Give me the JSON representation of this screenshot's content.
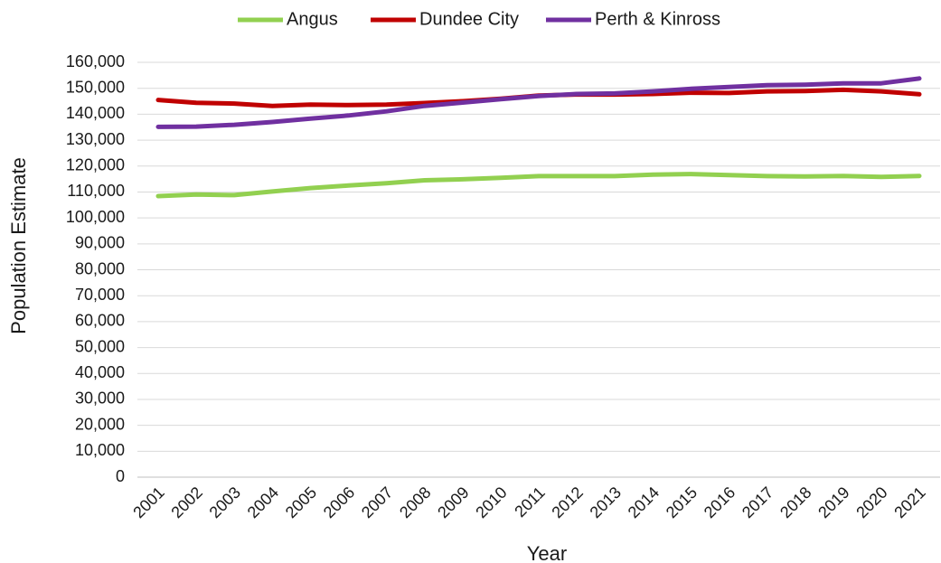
{
  "chart_data": {
    "type": "line",
    "xlabel": "Year",
    "ylabel": "Population Estimate",
    "x": [
      "2001",
      "2002",
      "2003",
      "2004",
      "2005",
      "2006",
      "2007",
      "2008",
      "2009",
      "2010",
      "2011",
      "2012",
      "2013",
      "2014",
      "2015",
      "2016",
      "2017",
      "2018",
      "2019",
      "2020",
      "2021"
    ],
    "ylim": [
      0,
      160000
    ],
    "ytick_step": 10000,
    "yticks": [
      "0",
      "10,000",
      "20,000",
      "30,000",
      "40,000",
      "50,000",
      "60,000",
      "70,000",
      "80,000",
      "90,000",
      "100,000",
      "110,000",
      "120,000",
      "130,000",
      "140,000",
      "150,000",
      "160,000"
    ],
    "grid": true,
    "legend_position": "top",
    "series": [
      {
        "name": "Angus",
        "color": "#92d050",
        "values": [
          108400,
          109000,
          108800,
          110200,
          111500,
          112500,
          113400,
          114500,
          114900,
          115500,
          116100,
          116100,
          116100,
          116700,
          116900,
          116500,
          116100,
          116000,
          116200,
          115800,
          116200
        ]
      },
      {
        "name": "Dundee City",
        "color": "#c00000",
        "values": [
          145500,
          144400,
          144100,
          143200,
          143700,
          143500,
          143700,
          144300,
          145000,
          146000,
          147200,
          147600,
          147600,
          147800,
          148300,
          148200,
          148800,
          148900,
          149400,
          148800,
          147700
        ]
      },
      {
        "name": "Perth & Kinross",
        "color": "#7030a0",
        "values": [
          135100,
          135200,
          135900,
          137000,
          138300,
          139500,
          141100,
          143200,
          144500,
          145800,
          147000,
          147800,
          148000,
          148800,
          149800,
          150500,
          151200,
          151400,
          151900,
          151900,
          153800
        ]
      }
    ]
  }
}
